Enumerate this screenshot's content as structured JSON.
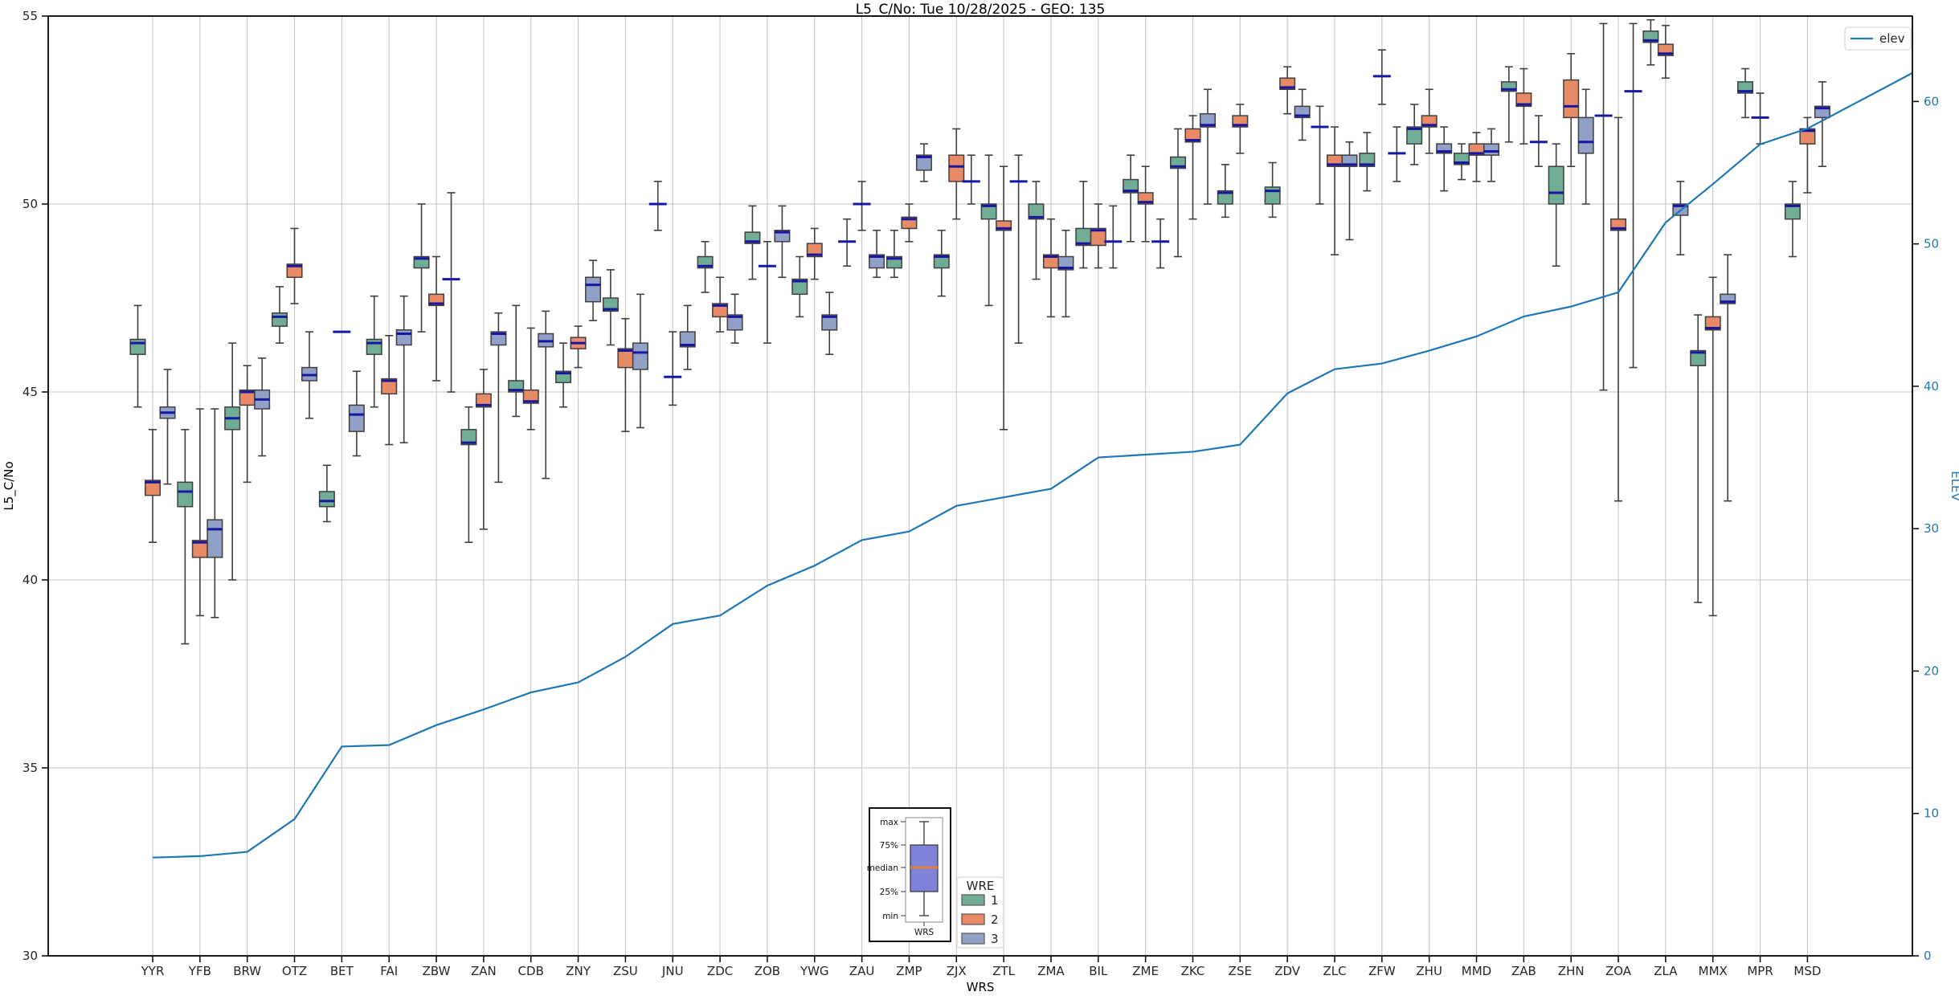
{
  "chart_data": {
    "type": "boxplot+line",
    "title": "L5_C/No: Tue 10/28/2025 - GEO: 135",
    "xlabel": "WRS",
    "ylabel_left": "L5_C/No",
    "ylabel_right": "ELEV",
    "ylim_left": [
      30,
      55
    ],
    "yticks_left": [
      30,
      35,
      40,
      45,
      50,
      55
    ],
    "ylim_right": [
      0,
      66
    ],
    "yticks_right": [
      0,
      10,
      20,
      30,
      40,
      50,
      60
    ],
    "grid": "horizontal and vertical light gray gridlines",
    "line_legend": {
      "label": "elev",
      "color": "#1f77b4",
      "position": "top-right"
    },
    "box_legend": {
      "title": "WRE",
      "entries": [
        {
          "label": "1",
          "color": "#70ad94"
        },
        {
          "label": "2",
          "color": "#e98a67"
        },
        {
          "label": "3",
          "color": "#91a0c7"
        }
      ]
    },
    "inset_legend": {
      "labels": [
        "max",
        "75%",
        "median",
        "25%",
        "min"
      ],
      "xlabel": "WRS",
      "box_color": "#7f82d9",
      "median_color": "#e07e33"
    },
    "colors": {
      "median": "#1717a3",
      "box_edge": "#3f3f3f",
      "whisker": "#3f3f3f",
      "gridline": "#c6c6c6",
      "elev_line": "#1f77b4",
      "right_axis_text": "#1f77b4"
    },
    "categories": [
      "YYR",
      "YFB",
      "BRW",
      "OTZ",
      "BET",
      "FAI",
      "ZBW",
      "ZAN",
      "CDB",
      "ZNY",
      "ZSU",
      "JNU",
      "ZDC",
      "ZOB",
      "YWG",
      "ZAU",
      "ZMP",
      "ZJX",
      "ZTL",
      "ZMA",
      "BIL",
      "ZME",
      "ZKC",
      "ZSE",
      "ZDV",
      "ZLC",
      "ZFW",
      "ZHU",
      "MMD",
      "ZAB",
      "ZHN",
      "ZOA",
      "ZLA",
      "MMX",
      "MPR",
      "MSD"
    ],
    "series": [
      {
        "name": "1",
        "color": "#70ad94",
        "boxes": [
          [
            44.6,
            46.0,
            46.3,
            46.4,
            47.3
          ],
          [
            38.3,
            41.95,
            42.35,
            42.6,
            44.0
          ],
          [
            40.0,
            44.0,
            44.3,
            44.6,
            46.3
          ],
          [
            46.3,
            46.75,
            47.0,
            47.1,
            47.8
          ],
          [
            41.55,
            41.95,
            42.1,
            42.35,
            43.05
          ],
          [
            44.6,
            46.0,
            46.3,
            46.4,
            47.55
          ],
          [
            46.6,
            48.3,
            48.55,
            48.6,
            50.0
          ],
          [
            41.0,
            43.6,
            43.65,
            44.0,
            44.6
          ],
          [
            44.35,
            45.0,
            45.05,
            45.3,
            47.3
          ],
          [
            44.6,
            45.25,
            45.5,
            45.55,
            46.3
          ],
          [
            46.25,
            47.15,
            47.2,
            47.5,
            48.25
          ],
          [
            49.3,
            50.0,
            50.0,
            50.0,
            50.6
          ],
          [
            47.65,
            48.3,
            48.35,
            48.6,
            49.0
          ],
          [
            48.0,
            48.95,
            49.0,
            49.25,
            49.95
          ],
          [
            47.0,
            47.6,
            47.95,
            48.0,
            48.6
          ],
          [
            48.35,
            49.0,
            49.0,
            49.0,
            49.6
          ],
          [
            48.05,
            48.3,
            48.55,
            48.6,
            49.3
          ],
          [
            47.55,
            48.3,
            48.6,
            48.65,
            49.3
          ],
          [
            47.3,
            49.6,
            49.95,
            50.0,
            51.3
          ],
          [
            48.0,
            49.6,
            49.65,
            50.0,
            50.6
          ],
          [
            48.3,
            48.9,
            48.95,
            49.35,
            50.6
          ],
          [
            49.0,
            50.3,
            50.35,
            50.65,
            51.3
          ],
          [
            48.6,
            50.95,
            51.0,
            51.25,
            52.0
          ],
          [
            49.65,
            50.0,
            50.3,
            50.35,
            51.05
          ],
          [
            49.65,
            50.0,
            50.35,
            50.45,
            51.1
          ],
          [
            50.0,
            52.05,
            52.05,
            52.05,
            52.6
          ],
          [
            50.35,
            51.0,
            51.05,
            51.35,
            51.9
          ],
          [
            51.05,
            51.6,
            52.0,
            52.05,
            52.65
          ],
          [
            50.65,
            51.05,
            51.1,
            51.35,
            51.6
          ],
          [
            51.65,
            53.0,
            53.05,
            53.25,
            53.65
          ],
          [
            48.35,
            50.0,
            50.3,
            51.0,
            51.6
          ],
          [
            45.05,
            52.35,
            52.35,
            52.35,
            54.8
          ],
          [
            53.7,
            54.3,
            54.35,
            54.6,
            54.9
          ],
          [
            39.4,
            45.7,
            46.05,
            46.1,
            47.05
          ],
          [
            52.3,
            52.95,
            53.0,
            53.25,
            53.6
          ],
          [
            48.6,
            49.6,
            49.95,
            50.0,
            50.6
          ]
        ]
      },
      {
        "name": "2",
        "color": "#e98a67",
        "boxes": [
          [
            41.0,
            42.25,
            42.6,
            42.65,
            44.0
          ],
          [
            39.05,
            40.6,
            41.0,
            41.05,
            44.55
          ],
          [
            42.6,
            44.65,
            45.0,
            45.05,
            45.7
          ],
          [
            47.35,
            48.05,
            48.35,
            48.4,
            49.35
          ],
          [
            46.6,
            46.6,
            46.6,
            46.6,
            46.6
          ],
          [
            43.6,
            44.95,
            45.3,
            45.35,
            46.5
          ],
          [
            45.3,
            47.3,
            47.35,
            47.6,
            48.6
          ],
          [
            41.35,
            44.6,
            44.65,
            44.95,
            45.6
          ],
          [
            44.0,
            44.7,
            44.75,
            45.05,
            46.7
          ],
          [
            45.65,
            46.15,
            46.3,
            46.45,
            46.75
          ],
          [
            43.95,
            45.65,
            46.1,
            46.15,
            46.95
          ],
          [
            44.65,
            45.4,
            45.4,
            45.4,
            46.6
          ],
          [
            46.6,
            47.0,
            47.3,
            47.35,
            48.05
          ],
          [
            46.3,
            48.35,
            48.35,
            48.35,
            49.0
          ],
          [
            48.0,
            48.6,
            48.65,
            48.95,
            49.35
          ],
          [
            49.3,
            50.0,
            50.0,
            50.0,
            50.6
          ],
          [
            49.0,
            49.35,
            49.6,
            49.65,
            50.0
          ],
          [
            49.6,
            50.6,
            51.0,
            51.3,
            52.0
          ],
          [
            44.0,
            49.3,
            49.35,
            49.55,
            51.0
          ],
          [
            47.0,
            48.3,
            48.6,
            48.65,
            49.6
          ],
          [
            48.3,
            48.9,
            49.3,
            49.35,
            50.0
          ],
          [
            49.0,
            50.0,
            50.05,
            50.3,
            51.0
          ],
          [
            49.6,
            51.65,
            51.7,
            52.0,
            52.35
          ],
          [
            51.35,
            52.05,
            52.1,
            52.35,
            52.65
          ],
          [
            52.4,
            53.05,
            53.1,
            53.35,
            53.65
          ],
          [
            48.65,
            51.0,
            51.05,
            51.3,
            52.05
          ],
          [
            52.65,
            53.4,
            53.4,
            53.4,
            54.1
          ],
          [
            51.35,
            52.05,
            52.1,
            52.35,
            53.05
          ],
          [
            50.6,
            51.3,
            51.35,
            51.6,
            51.9
          ],
          [
            51.6,
            52.6,
            52.65,
            52.95,
            53.6
          ],
          [
            51.0,
            52.3,
            52.6,
            53.3,
            54.0
          ],
          [
            42.1,
            49.3,
            49.35,
            49.6,
            52.3
          ],
          [
            53.35,
            53.95,
            54.0,
            54.25,
            54.75
          ],
          [
            39.05,
            46.65,
            46.7,
            47.0,
            48.05
          ],
          [
            51.6,
            52.3,
            52.3,
            52.3,
            52.95
          ],
          [
            50.3,
            51.6,
            51.95,
            52.0,
            52.3
          ]
        ]
      },
      {
        "name": "3",
        "color": "#91a0c7",
        "boxes": [
          [
            42.55,
            44.3,
            44.45,
            44.6,
            45.6
          ],
          [
            39.0,
            40.6,
            41.35,
            41.6,
            44.55
          ],
          [
            43.3,
            44.55,
            44.8,
            45.05,
            45.9
          ],
          [
            44.3,
            45.3,
            45.45,
            45.65,
            46.6
          ],
          [
            43.3,
            43.95,
            44.4,
            44.65,
            45.55
          ],
          [
            43.65,
            46.25,
            46.55,
            46.65,
            47.55
          ],
          [
            45.0,
            48.0,
            48.0,
            48.0,
            50.3
          ],
          [
            42.6,
            46.25,
            46.55,
            46.6,
            47.1
          ],
          [
            42.7,
            46.2,
            46.35,
            46.55,
            47.15
          ],
          [
            46.9,
            47.4,
            47.85,
            48.05,
            48.5
          ],
          [
            44.05,
            45.6,
            46.05,
            46.3,
            47.6
          ],
          [
            45.6,
            46.2,
            46.25,
            46.6,
            47.3
          ],
          [
            46.3,
            46.65,
            47.0,
            47.05,
            47.6
          ],
          [
            48.05,
            49.0,
            49.25,
            49.3,
            49.95
          ],
          [
            46.0,
            46.65,
            47.0,
            47.05,
            47.65
          ],
          [
            48.05,
            48.3,
            48.6,
            48.65,
            49.3
          ],
          [
            50.6,
            50.9,
            51.25,
            51.3,
            51.6
          ],
          [
            50.0,
            50.6,
            50.6,
            50.6,
            51.3
          ],
          [
            46.3,
            50.6,
            50.6,
            50.6,
            51.3
          ],
          [
            47.0,
            48.25,
            48.3,
            48.6,
            49.3
          ],
          [
            48.3,
            49.0,
            49.0,
            49.0,
            49.95
          ],
          [
            48.3,
            49.0,
            49.0,
            49.0,
            49.6
          ],
          [
            50.0,
            52.05,
            52.1,
            52.4,
            53.05
          ],
          null,
          [
            51.7,
            52.3,
            52.35,
            52.6,
            53.05
          ],
          [
            49.05,
            51.0,
            51.05,
            51.3,
            51.65
          ],
          [
            50.6,
            51.35,
            51.35,
            51.35,
            52.05
          ],
          [
            50.35,
            51.35,
            51.4,
            51.6,
            52.05
          ],
          [
            50.6,
            51.3,
            51.4,
            51.6,
            52.0
          ],
          [
            51.0,
            51.65,
            51.65,
            51.65,
            52.35
          ],
          [
            50.0,
            51.35,
            51.65,
            52.3,
            53.05
          ],
          [
            45.65,
            53.0,
            53.0,
            53.0,
            54.8
          ],
          [
            48.65,
            49.7,
            49.95,
            50.0,
            50.6
          ],
          [
            42.1,
            47.35,
            47.4,
            47.6,
            48.65
          ],
          null,
          [
            51.0,
            52.3,
            52.55,
            52.6,
            53.25
          ]
        ]
      }
    ],
    "elev": {
      "name": "elev",
      "color": "#1f77b4",
      "values": [
        6.9,
        7.0,
        7.3,
        9.6,
        14.7,
        14.8,
        16.2,
        17.3,
        18.5,
        19.2,
        21.0,
        23.3,
        23.9,
        26.0,
        27.4,
        29.2,
        29.8,
        31.6,
        32.2,
        32.8,
        35.0,
        35.2,
        35.4,
        35.9,
        39.5,
        41.2,
        41.6,
        42.5,
        43.5,
        44.9,
        45.6,
        46.6,
        51.5,
        54.2,
        57.0,
        58.1
      ],
      "right_edge_value": 62.0
    }
  }
}
